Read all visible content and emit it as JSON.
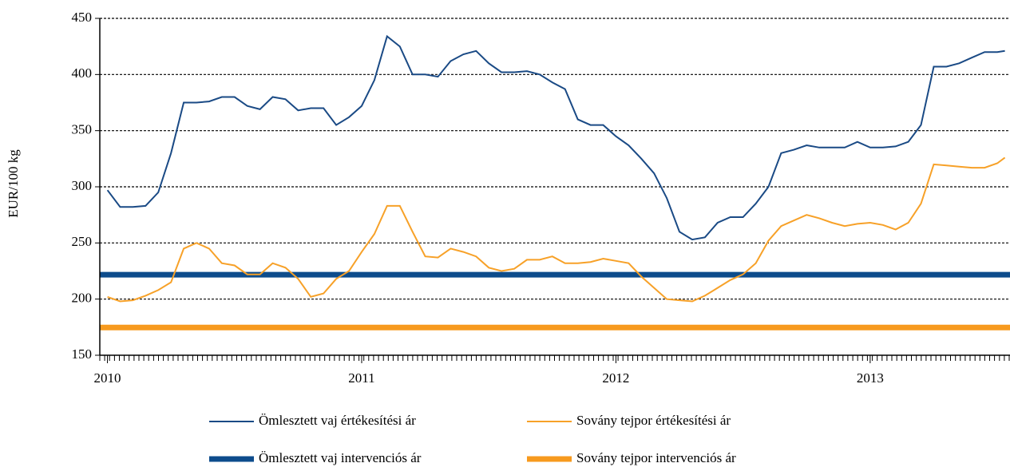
{
  "chart_data": {
    "type": "line",
    "ylabel": "EUR/100 kg",
    "xlim": [
      2009.97,
      2013.55
    ],
    "xticks": [
      2010,
      2011,
      2012,
      2013
    ],
    "ylim": [
      150,
      450
    ],
    "yticks": [
      150,
      200,
      250,
      300,
      350,
      400,
      450
    ],
    "grid": true,
    "x": [
      2010.0,
      2010.05,
      2010.1,
      2010.15,
      2010.2,
      2010.25,
      2010.3,
      2010.35,
      2010.4,
      2010.45,
      2010.5,
      2010.55,
      2010.6,
      2010.65,
      2010.7,
      2010.75,
      2010.8,
      2010.85,
      2010.9,
      2010.95,
      2011.0,
      2011.05,
      2011.1,
      2011.15,
      2011.2,
      2011.25,
      2011.3,
      2011.35,
      2011.4,
      2011.45,
      2011.5,
      2011.55,
      2011.6,
      2011.65,
      2011.7,
      2011.75,
      2011.8,
      2011.85,
      2011.9,
      2011.95,
      2012.0,
      2012.05,
      2012.1,
      2012.15,
      2012.2,
      2012.25,
      2012.3,
      2012.35,
      2012.4,
      2012.45,
      2012.5,
      2012.55,
      2012.6,
      2012.65,
      2012.7,
      2012.75,
      2012.8,
      2012.85,
      2012.9,
      2012.95,
      2013.0,
      2013.05,
      2013.1,
      2013.15,
      2013.2,
      2013.25,
      2013.3,
      2013.35,
      2013.4,
      2013.45,
      2013.5,
      2013.53
    ],
    "series": [
      {
        "name": "Ömlesztett vaj értékesítési ár",
        "color": "#1a4a85",
        "values": [
          297,
          282,
          282,
          283,
          295,
          330,
          375,
          375,
          376,
          380,
          380,
          372,
          369,
          380,
          378,
          368,
          370,
          370,
          355,
          362,
          372,
          395,
          434,
          425,
          400,
          400,
          398,
          412,
          418,
          421,
          410,
          402,
          402,
          403,
          400,
          393,
          387,
          360,
          355,
          355,
          345,
          337,
          325,
          312,
          290,
          260,
          253,
          255,
          268,
          273,
          273,
          285,
          300,
          330,
          333,
          337,
          335,
          335,
          335,
          340,
          335,
          335,
          336,
          340,
          355,
          407,
          407,
          410,
          415,
          420,
          420,
          421
        ]
      },
      {
        "name": "Sovány tejpor értékesítési ár",
        "color": "#f7a128",
        "values": [
          202,
          198,
          199,
          203,
          208,
          215,
          245,
          250,
          245,
          232,
          230,
          222,
          222,
          232,
          228,
          218,
          202,
          205,
          218,
          225,
          242,
          258,
          283,
          283,
          260,
          238,
          237,
          245,
          242,
          238,
          228,
          225,
          227,
          235,
          235,
          238,
          232,
          232,
          233,
          236,
          234,
          232,
          220,
          210,
          200,
          199,
          198,
          203,
          210,
          217,
          222,
          232,
          252,
          265,
          270,
          275,
          272,
          268,
          265,
          267,
          268,
          266,
          262,
          268,
          285,
          320,
          319,
          318,
          317,
          317,
          321,
          326
        ]
      }
    ],
    "reference_lines": [
      {
        "name": "Ömlesztett vaj intervenciós ár",
        "color": "#0d4c8c",
        "value": 221.75
      },
      {
        "name": "Sovány tejpor intervenciós ár",
        "color": "#f79a1e",
        "value": 174.69
      }
    ]
  }
}
